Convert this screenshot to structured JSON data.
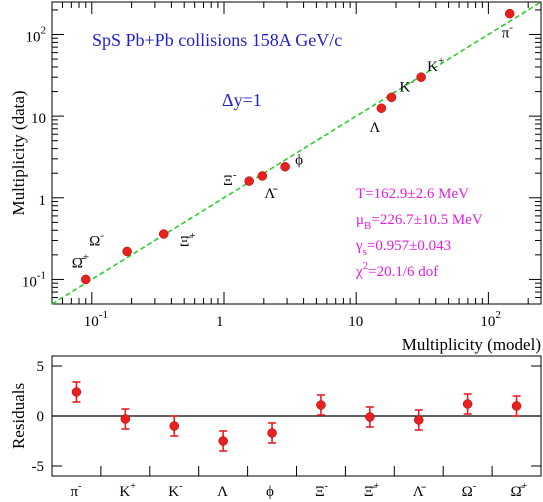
{
  "chart_data": [
    {
      "type": "scatter",
      "title": "SpS Pb+Pb collisions 158A GeV/c",
      "subtitle": "Δy=1",
      "xlabel": "Multiplicity (model)",
      "ylabel": "Multiplicity (data)",
      "xscale": "log",
      "yscale": "log",
      "xlim": [
        0.05,
        250
      ],
      "ylim": [
        0.05,
        250
      ],
      "xticklabels": [
        {
          "value": 0.1,
          "base": "10",
          "exp": "-1"
        },
        {
          "value": 1,
          "base": "1",
          "exp": ""
        },
        {
          "value": 10,
          "base": "10",
          "exp": ""
        },
        {
          "value": 100,
          "base": "10",
          "exp": "2"
        }
      ],
      "yticklabels": [
        {
          "value": 0.1,
          "base": "10",
          "exp": "-1"
        },
        {
          "value": 1,
          "base": "1",
          "exp": ""
        },
        {
          "value": 10,
          "base": "10",
          "exp": ""
        },
        {
          "value": 100,
          "base": "10",
          "exp": "2"
        }
      ],
      "diagonal_line": {
        "style": "dashed",
        "color": "#22cc22"
      },
      "points": [
        {
          "label": "π",
          "sup": "-",
          "model": 145,
          "data": 180
        },
        {
          "label": "K",
          "sup": "+",
          "model": 31,
          "data": 30
        },
        {
          "label": "K",
          "sup": "-",
          "model": 18.5,
          "data": 17
        },
        {
          "label": "Λ",
          "sup": "",
          "model": 15.5,
          "data": 12.5
        },
        {
          "label": "ϕ",
          "sup": "",
          "model": 2.9,
          "data": 2.4
        },
        {
          "label": "Λ̄",
          "sup": "",
          "model": 1.95,
          "data": 1.85
        },
        {
          "label": "Ξ",
          "sup": "-",
          "model": 1.55,
          "data": 1.6
        },
        {
          "label": "Ξ̄",
          "sup": "+",
          "model": 0.35,
          "data": 0.36
        },
        {
          "label": "Ω",
          "sup": "-",
          "model": 0.185,
          "data": 0.22
        },
        {
          "label": "Ω̄",
          "sup": "+",
          "model": 0.09,
          "data": 0.1
        }
      ],
      "fit_parameters": [
        {
          "text": "T=162.9±2.6 MeV"
        },
        {
          "text": "μB=226.7±10.5 MeV",
          "main": "μ",
          "sub": "B",
          "rest": "=226.7±10.5 MeV"
        },
        {
          "text": "γs=0.957±0.043",
          "main": "γ",
          "sub": "s",
          "rest": "=0.957±0.043"
        },
        {
          "text": "χ2=20.1/6 dof",
          "main": "χ",
          "sup": "2",
          "rest": "=20.1/6 dof"
        }
      ],
      "colors": {
        "points": "#e82020",
        "title": "#1f1fd0",
        "fit_text": "#e020e0",
        "line": "#22cc22"
      }
    },
    {
      "type": "scatter",
      "ylabel": "Residuals",
      "ylim": [
        -6,
        6
      ],
      "yticks": [
        5,
        0,
        -5
      ],
      "ytick_labels": [
        "5",
        "0",
        "-5"
      ],
      "reference_line": 0,
      "categories": [
        {
          "name": "π",
          "sup": "-"
        },
        {
          "name": "K",
          "sup": "+"
        },
        {
          "name": "K",
          "sup": "-"
        },
        {
          "name": "Λ",
          "sup": ""
        },
        {
          "name": "ϕ",
          "sup": ""
        },
        {
          "name": "Ξ",
          "sup": "-"
        },
        {
          "name": "Ξ̄",
          "sup": "+"
        },
        {
          "name": "Λ̄",
          "sup": ""
        },
        {
          "name": "Ω",
          "sup": "-"
        },
        {
          "name": "Ω̄",
          "sup": "+"
        }
      ],
      "values": [
        2.4,
        -0.3,
        -1.0,
        -2.5,
        -1.7,
        1.1,
        -0.1,
        -0.4,
        1.2,
        1.0
      ],
      "errors": [
        1.0,
        1.0,
        1.0,
        1.0,
        1.0,
        1.0,
        1.0,
        1.0,
        1.0,
        1.0
      ]
    }
  ]
}
